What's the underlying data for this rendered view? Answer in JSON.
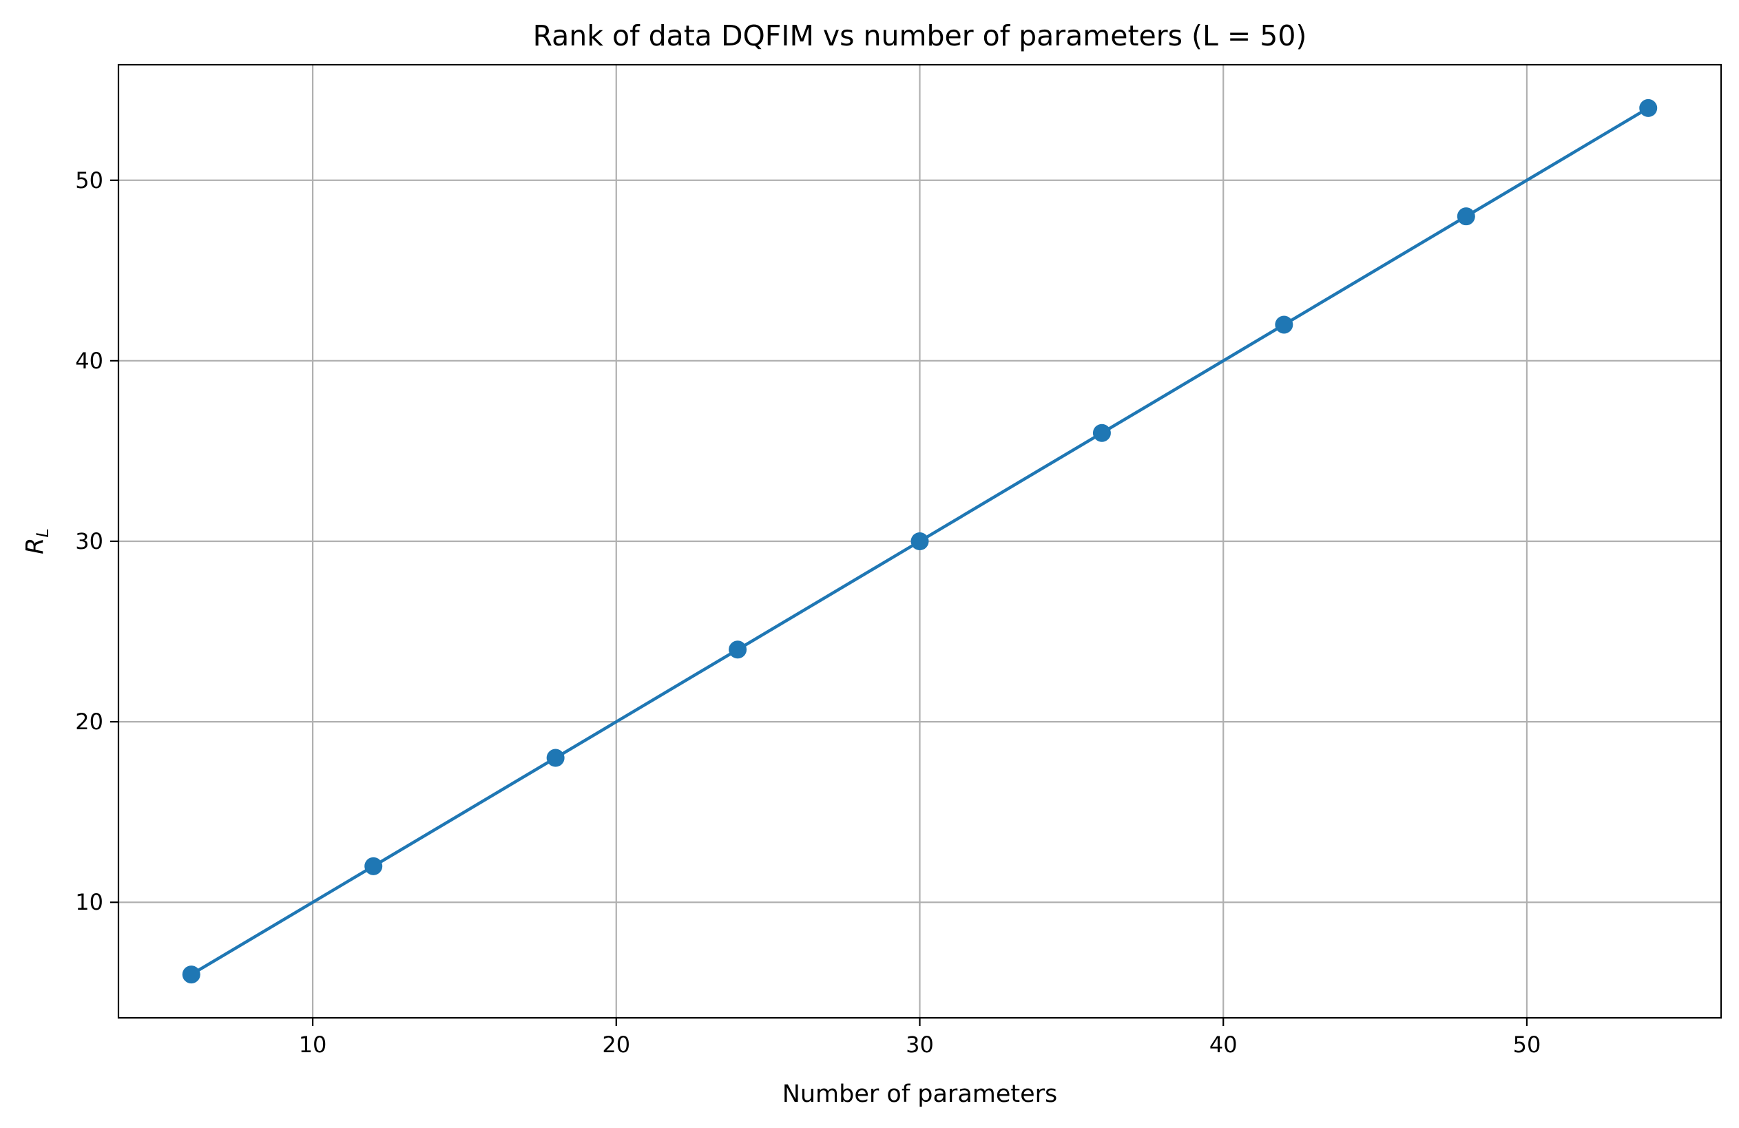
{
  "chart_data": {
    "type": "line",
    "title": "Rank of data DQFIM vs number of parameters (L = 50)",
    "xlabel": "Number of parameters",
    "ylabel_main": "R",
    "ylabel_sub": "L",
    "xlim": [
      3.6,
      56.4
    ],
    "ylim": [
      3.6,
      56.4
    ],
    "xticks": [
      10,
      20,
      30,
      40,
      50
    ],
    "yticks": [
      10,
      20,
      30,
      40,
      50
    ],
    "grid": true,
    "line_color": "#1f77b4",
    "series": [
      {
        "x": [
          6,
          12,
          18,
          24,
          30,
          36,
          42,
          48,
          54
        ],
        "y": [
          6,
          12,
          18,
          24,
          30,
          36,
          42,
          48,
          54
        ]
      }
    ]
  }
}
